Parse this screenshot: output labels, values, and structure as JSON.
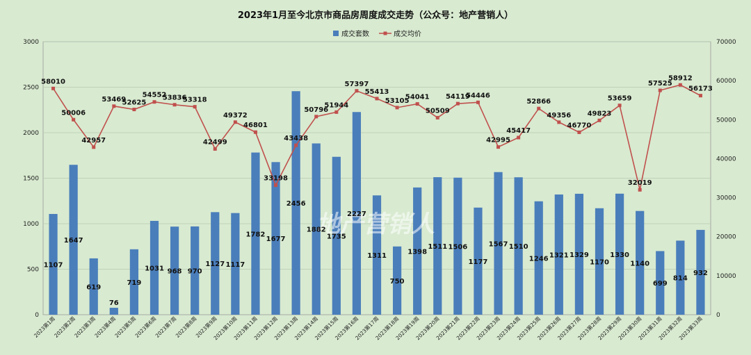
{
  "chart_data": {
    "type": "bar",
    "title": "2023年1月至今北京市商品房周度成交走势（公众号：地产营销人）",
    "watermark": "地产营销人",
    "legend_position": "top-center",
    "grid": true,
    "categories": [
      "2023第1周",
      "2023第2周",
      "2023第3周",
      "2023第4周",
      "2023第5周",
      "2023第6周",
      "2023第7周",
      "2023第8周",
      "2023第9周",
      "2023第10周",
      "2023第11周",
      "2023第12周",
      "2023第13周",
      "2023第14周",
      "2023第15周",
      "2023第16周",
      "2023第17周",
      "2023第18周",
      "2023第19周",
      "2023第20周",
      "2023第21周",
      "2023第22周",
      "2023第23周",
      "2023第24周",
      "2023第25周",
      "2023第26周",
      "2023第27周",
      "2023第28周",
      "2023第29周",
      "2023第30周",
      "2023第31周",
      "2023第32周",
      "2023第33周"
    ],
    "series": [
      {
        "name": "成交套数",
        "type": "bar",
        "axis": "left",
        "color": "#4a7ebb",
        "values": [
          1107,
          1647,
          619,
          76,
          719,
          1031,
          968,
          970,
          1127,
          1117,
          1782,
          1677,
          2456,
          1882,
          1735,
          2227,
          1311,
          750,
          1398,
          1511,
          1506,
          1177,
          1567,
          1510,
          1246,
          1321,
          1329,
          1170,
          1330,
          1140,
          699,
          814,
          932
        ]
      },
      {
        "name": "成交均价",
        "type": "line",
        "axis": "right",
        "color": "#c0504d",
        "values": [
          58010,
          50006,
          42957,
          53469,
          52625,
          54552,
          53836,
          53318,
          42499,
          49372,
          46801,
          33198,
          43438,
          50796,
          51944,
          57397,
          55413,
          53105,
          54041,
          50509,
          54119,
          54446,
          42995,
          45417,
          52866,
          49356,
          46770,
          49823,
          53659,
          32019,
          57525,
          58912,
          56173
        ]
      }
    ],
    "left_axis": {
      "ylim": [
        0,
        3000
      ],
      "ticks": [
        "0",
        "500",
        "1000",
        "1500",
        "2000",
        "2500",
        "3000"
      ]
    },
    "right_axis": {
      "ylim": [
        0,
        70000
      ],
      "ticks": [
        "0",
        "10000",
        "20000",
        "30000",
        "40000",
        "50000",
        "60000",
        "70000"
      ]
    }
  }
}
